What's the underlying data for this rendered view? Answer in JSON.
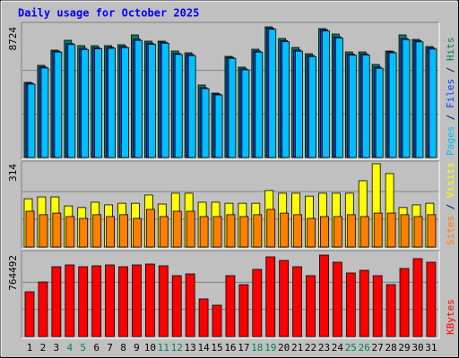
{
  "chart_data": {
    "type": "bar",
    "title": "Daily usage for October 2025",
    "categories": [
      "1",
      "2",
      "3",
      "4",
      "5",
      "6",
      "7",
      "8",
      "9",
      "10",
      "11",
      "12",
      "13",
      "14",
      "15",
      "16",
      "17",
      "18",
      "19",
      "20",
      "21",
      "22",
      "23",
      "24",
      "25",
      "26",
      "27",
      "28",
      "29",
      "30",
      "31"
    ],
    "category_label_colors": [
      "#000000",
      "#000000",
      "#000000",
      "#00805c",
      "#00805c",
      "#000000",
      "#000000",
      "#000000",
      "#000000",
      "#000000",
      "#00805c",
      "#00805c",
      "#000000",
      "#000000",
      "#000000",
      "#000000",
      "#000000",
      "#00805c",
      "#00805c",
      "#000000",
      "#000000",
      "#000000",
      "#000000",
      "#000000",
      "#00805c",
      "#00805c",
      "#000000",
      "#000000",
      "#000000",
      "#000000",
      "#000000"
    ],
    "legend_separator": " / ",
    "panels": [
      {
        "ylim": [
          0,
          8724
        ],
        "yticks": [
          8724
        ],
        "series": [
          {
            "name": "Pages",
            "color": "#00c0ff",
            "values": [
              4900,
              5980,
              7040,
              7540,
              7210,
              7260,
              7290,
              7340,
              7820,
              7560,
              7630,
              6880,
              6800,
              4600,
              4180,
              6620,
              5850,
              7040,
              8560,
              7730,
              7100,
              6740,
              8450,
              7980,
              6840,
              6850,
              5960,
              6990,
              7870,
              7720,
              7240
            ]
          },
          {
            "name": "Files",
            "color": "#0040ff",
            "values": [
              4962,
              6047,
              7105,
              7610,
              7290,
              7330,
              7360,
              7410,
              7905,
              7640,
              7700,
              6950,
              6880,
              4660,
              4240,
              6690,
              5920,
              7110,
              8640,
              7810,
              7180,
              6810,
              8540,
              8060,
              6910,
              6920,
              6040,
              7060,
              7950,
              7800,
              7320
            ]
          },
          {
            "name": "Hits",
            "color": "#00805c",
            "values": [
              5019,
              6154,
              7170,
              7827,
              7469,
              7469,
              7469,
              7529,
              8186,
              7768,
              7768,
              7110,
              6991,
              4840,
              4302,
              6752,
              6035,
              7230,
              8724,
              7947,
              7349,
              6931,
              8604,
              8245,
              7050,
              7050,
              6214,
              7110,
              8186,
              7887,
              7409
            ]
          }
        ]
      },
      {
        "ylim": [
          0,
          314
        ],
        "yticks": [
          314
        ],
        "series": [
          {
            "name": "Sites",
            "color": "#ff8000",
            "values": [
              135,
              122,
              128,
              115,
              108,
              122,
              115,
              122,
              108,
              142,
              115,
              135,
              135,
              115,
              115,
              122,
              115,
              122,
              142,
              128,
              122,
              108,
              115,
              115,
              122,
              115,
              128,
              128,
              122,
              115,
              122
            ]
          },
          {
            "name": "Visits",
            "color": "#ffff00",
            "values": [
              182,
              189,
              189,
              155,
              149,
              169,
              159,
              165,
              165,
              196,
              162,
              203,
              203,
              169,
              169,
              165,
              165,
              165,
              213,
              203,
              203,
              192,
              203,
              203,
              203,
              250,
              314,
              277,
              149,
              159,
              165
            ]
          }
        ]
      },
      {
        "ylim": [
          0,
          764492
        ],
        "yticks": [
          764492
        ],
        "series": [
          {
            "name": "KBytes",
            "color": "#ff0000",
            "values": [
              420050,
              512461,
              655278,
              672080,
              655278,
              663679,
              672080,
              655278,
              672080,
              680481,
              663679,
              571268,
              588070,
              352842,
              294035,
              571268,
              487258,
              630075,
              747689,
              714085,
              655278,
              571268,
              764492,
              697283,
              596471,
              621674,
              571268,
              487258,
              638476,
              730887,
              697283
            ]
          }
        ]
      }
    ]
  }
}
